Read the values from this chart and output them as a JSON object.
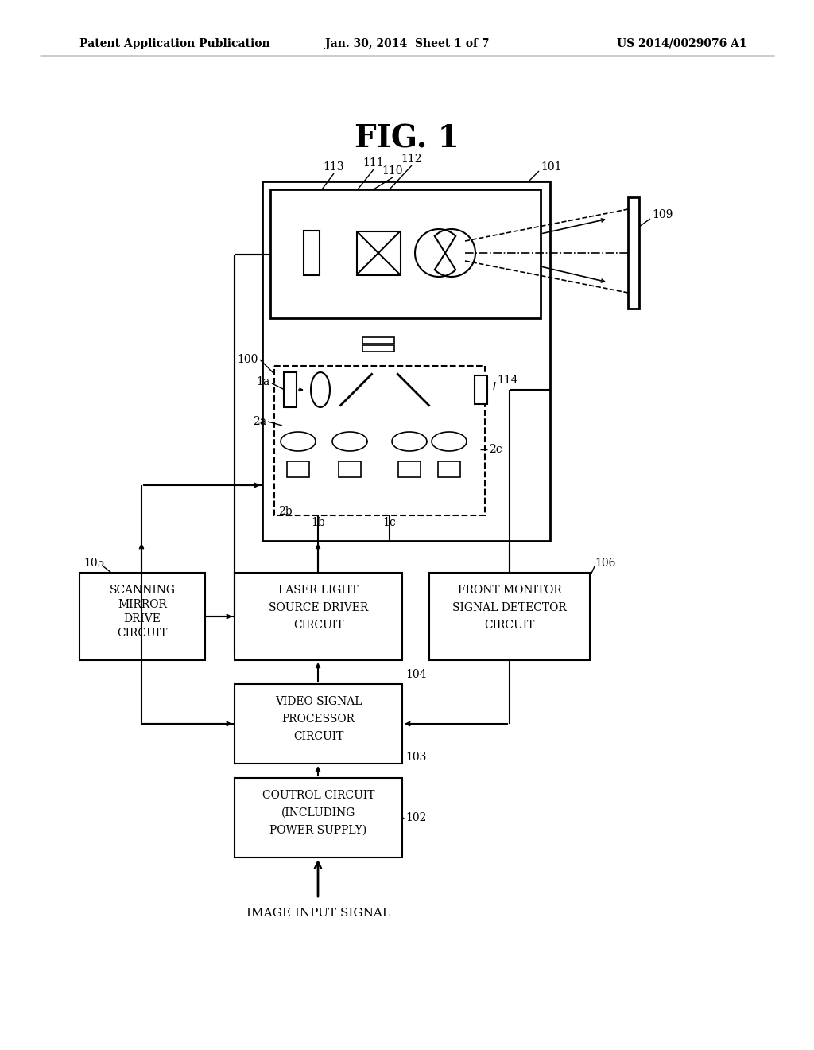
{
  "bg_color": "#ffffff",
  "line_color": "#000000",
  "header_left": "Patent Application Publication",
  "header_mid": "Jan. 30, 2014  Sheet 1 of 7",
  "header_right": "US 2014/0029076 A1",
  "fig_title": "FIG. 1"
}
